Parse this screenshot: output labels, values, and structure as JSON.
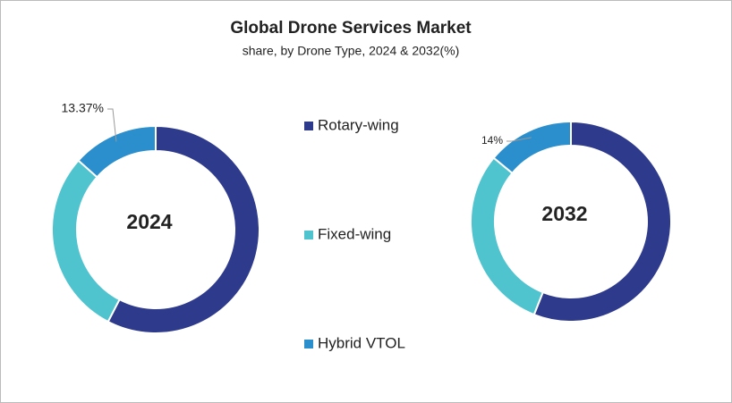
{
  "title": "Global Drone Services Market",
  "subtitle": "share, by Drone Type, 2024 & 2032(%)",
  "chart_data": [
    {
      "type": "donut",
      "center_label": "2024",
      "categories": [
        "Rotary-wing",
        "Fixed-wing",
        "Hybrid VTOL"
      ],
      "colors": [
        "#2e3a8c",
        "#4fc4cf",
        "#2a8fcc"
      ],
      "values": [
        57.6,
        29.03,
        13.37
      ],
      "value_labels": [
        null,
        null,
        "13.37%"
      ]
    },
    {
      "type": "donut",
      "center_label": "2032",
      "categories": [
        "Rotary-wing",
        "Fixed-wing",
        "Hybrid VTOL"
      ],
      "colors": [
        "#2e3a8c",
        "#4fc4cf",
        "#2a8fcc"
      ],
      "values": [
        56,
        30,
        14
      ],
      "value_labels": [
        null,
        null,
        "14%"
      ]
    }
  ]
}
